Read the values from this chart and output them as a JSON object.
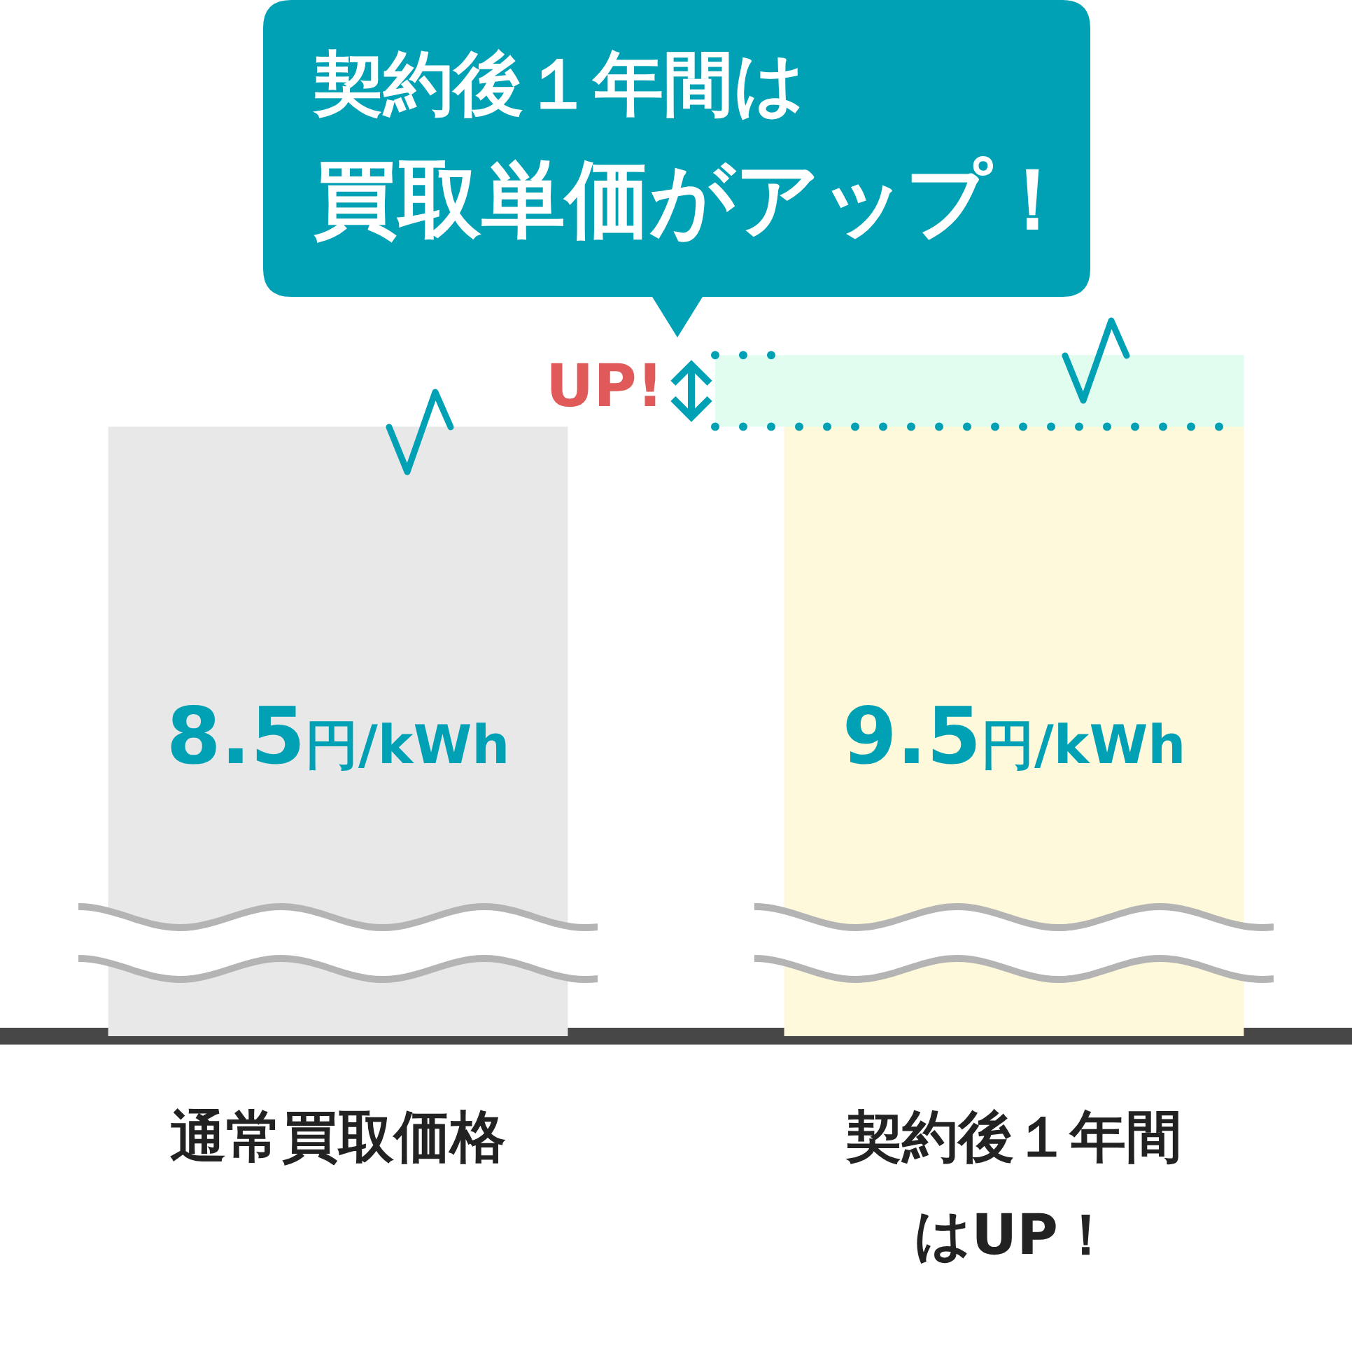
{
  "chart_data": {
    "type": "bar",
    "title": "契約後１年間は買取単価がアップ！",
    "categories": [
      "通常買取価格",
      "契約後１年間はUP！"
    ],
    "values": [
      8.5,
      9.5
    ],
    "colors": [
      "#e8e8e8",
      "#fef9da"
    ],
    "value_labels": [
      "8.5円/kWh",
      "9.5円/kWh"
    ],
    "tick_labels": "x",
    "bands": [
      {
        "axis": "y",
        "from": 8.5,
        "to": 9.5,
        "label": "UP!",
        "color": "#e1fdf0"
      }
    ]
  }
}
